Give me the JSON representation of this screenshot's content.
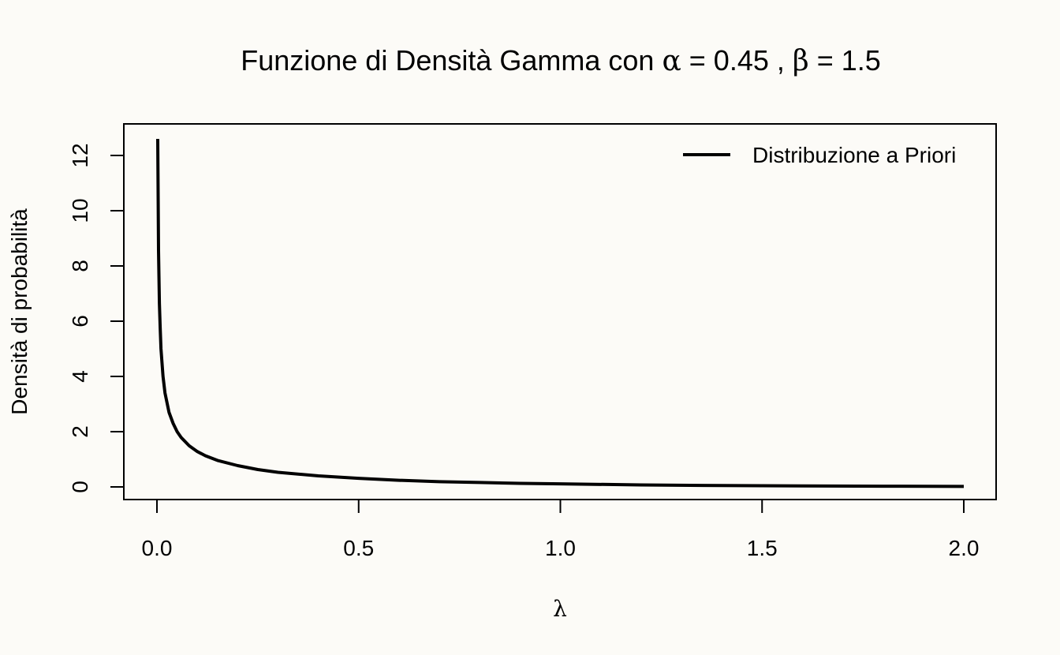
{
  "chart_data": {
    "type": "line",
    "title": {
      "prefix": "Funzione di Densità Gamma con ",
      "alpha_symbol": "α",
      "alpha_text": " = 0.45 , ",
      "beta_symbol": "β",
      "beta_text": " = 1.5"
    },
    "xlabel": "λ",
    "ylabel": "Densità di probabilità",
    "xlim": [
      0.0,
      2.0
    ],
    "ylim": [
      0,
      12.6
    ],
    "x_ticks": [
      "0.0",
      "0.5",
      "1.0",
      "1.5",
      "2.0"
    ],
    "y_ticks": [
      "0",
      "2",
      "4",
      "6",
      "8",
      "10",
      "12"
    ],
    "grid": false,
    "legend_position": "top-right",
    "series": [
      {
        "name": "Distribuzione a Priori",
        "color": "#000000",
        "x": [
          0.002,
          0.004,
          0.006,
          0.008,
          0.01,
          0.015,
          0.02,
          0.03,
          0.04,
          0.05,
          0.06,
          0.08,
          0.1,
          0.12,
          0.15,
          0.2,
          0.25,
          0.3,
          0.4,
          0.5,
          0.6,
          0.7,
          0.8,
          0.9,
          1.0,
          1.2,
          1.4,
          1.6,
          1.8,
          2.0
        ],
        "y": [
          12.6,
          8.55,
          6.65,
          5.77,
          5.0,
          4.0,
          3.4,
          2.7,
          2.3,
          2.0,
          1.79,
          1.49,
          1.28,
          1.13,
          0.96,
          0.77,
          0.63,
          0.53,
          0.4,
          0.31,
          0.24,
          0.19,
          0.16,
          0.13,
          0.11,
          0.07,
          0.05,
          0.035,
          0.025,
          0.018
        ]
      }
    ]
  }
}
